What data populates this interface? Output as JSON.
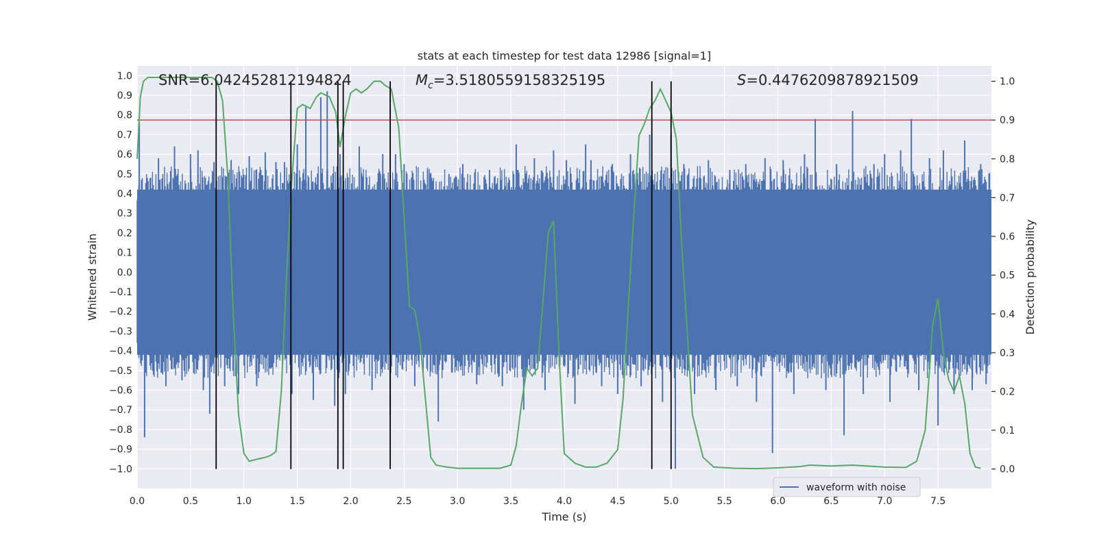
{
  "chart_data": {
    "type": "line",
    "title": "stats at each timestep for test data 12986 [signal=1]",
    "xlabel": "Time (s)",
    "ylabel": "Whitened strain",
    "ylabel_right": "Detection probability",
    "xlim": [
      0,
      8
    ],
    "ylim": [
      -1.1,
      1.05
    ],
    "ylim_right": [
      -0.05,
      1.04
    ],
    "x_ticks": [
      0,
      0.5,
      1,
      1.5,
      2,
      2.5,
      3,
      3.5,
      4,
      4.5,
      5,
      5.5,
      6,
      6.5,
      7,
      7.5
    ],
    "x_tick_labels": [
      "0.0",
      "0.5",
      "1.0",
      "1.5",
      "2.0",
      "2.5",
      "3.0",
      "3.5",
      "4.0",
      "4.5",
      "5.0",
      "5.5",
      "6.0",
      "6.5",
      "7.0",
      "7.5"
    ],
    "y_ticks": [
      -1.0,
      -0.9,
      -0.8,
      -0.7,
      -0.6,
      -0.5,
      -0.4,
      -0.3,
      -0.2,
      -0.1,
      0.0,
      0.1,
      0.2,
      0.3,
      0.4,
      0.5,
      0.6,
      0.7,
      0.8,
      0.9,
      1.0
    ],
    "y_tick_labels": [
      "−1.0",
      "−0.9",
      "−0.8",
      "−0.7",
      "−0.6",
      "−0.5",
      "−0.4",
      "−0.3",
      "−0.2",
      "−0.1",
      "0.0",
      "0.1",
      "0.2",
      "0.3",
      "0.4",
      "0.5",
      "0.6",
      "0.7",
      "0.8",
      "0.9",
      "1.0"
    ],
    "y_right_ticks": [
      0.0,
      0.1,
      0.2,
      0.3,
      0.4,
      0.5,
      0.6,
      0.7,
      0.8,
      0.9,
      1.0
    ],
    "y_right_tick_labels": [
      "0.0",
      "0.1",
      "0.2",
      "0.3",
      "0.4",
      "0.5",
      "0.6",
      "0.7",
      "0.8",
      "0.9",
      "1.0"
    ],
    "grid": true,
    "legend_placement": "lower-right",
    "annotations": {
      "snr": "SNR=6.042452812194824",
      "mc_symbol": "M",
      "mc_subscript": "c",
      "mc_value": "=3.5180559158325195",
      "s_symbol": "S",
      "s_value": "=0.4476209878921509"
    },
    "series": [
      {
        "name": "waveform with noise",
        "axis": "left",
        "color": "#4c72b0",
        "kind": "noise-band",
        "band_low": -0.42,
        "band_high": 0.42,
        "peaks": [
          [
            0.02,
            0.76
          ],
          [
            0.07,
            -0.84
          ],
          [
            0.2,
            0.58
          ],
          [
            0.27,
            -0.58
          ],
          [
            0.35,
            0.64
          ],
          [
            0.42,
            -0.55
          ],
          [
            0.5,
            0.6
          ],
          [
            0.57,
            0.62
          ],
          [
            0.62,
            -0.6
          ],
          [
            0.68,
            -0.72
          ],
          [
            0.72,
            0.56
          ],
          [
            0.82,
            -0.58
          ],
          [
            0.88,
            0.57
          ],
          [
            0.95,
            -0.62
          ],
          [
            1.05,
            0.59
          ],
          [
            1.12,
            -0.58
          ],
          [
            1.2,
            0.61
          ],
          [
            1.3,
            0.56
          ],
          [
            1.38,
            0.56
          ],
          [
            1.45,
            -0.62
          ],
          [
            1.5,
            0.65
          ],
          [
            1.58,
            0.84
          ],
          [
            1.65,
            -0.65
          ],
          [
            1.72,
            0.89
          ],
          [
            1.78,
            0.92
          ],
          [
            1.85,
            -0.68
          ],
          [
            1.9,
            0.6
          ],
          [
            1.95,
            -0.62
          ],
          [
            2.08,
            0.64
          ],
          [
            2.2,
            -0.6
          ],
          [
            2.3,
            0.6
          ],
          [
            2.37,
            -0.73
          ],
          [
            2.42,
            0.6
          ],
          [
            2.5,
            0.55
          ],
          [
            2.6,
            -0.58
          ],
          [
            2.72,
            0.52
          ],
          [
            2.82,
            -0.76
          ],
          [
            2.92,
            0.5
          ],
          [
            3.05,
            0.55
          ],
          [
            3.18,
            -0.57
          ],
          [
            3.3,
            0.52
          ],
          [
            3.42,
            -0.58
          ],
          [
            3.55,
            0.65
          ],
          [
            3.62,
            -0.7
          ],
          [
            3.72,
            0.58
          ],
          [
            3.82,
            -0.6
          ],
          [
            3.9,
            0.62
          ],
          [
            4.02,
            0.57
          ],
          [
            4.1,
            -0.67
          ],
          [
            4.2,
            0.65
          ],
          [
            4.25,
            0.57
          ],
          [
            4.35,
            -0.58
          ],
          [
            4.45,
            0.55
          ],
          [
            4.5,
            -0.62
          ],
          [
            4.62,
            0.6
          ],
          [
            4.72,
            -0.58
          ],
          [
            4.8,
            0.7
          ],
          [
            4.92,
            -0.66
          ],
          [
            5.0,
            0.7
          ],
          [
            5.04,
            -1.0
          ],
          [
            5.12,
            0.55
          ],
          [
            5.22,
            -0.62
          ],
          [
            5.35,
            0.57
          ],
          [
            5.42,
            -0.6
          ],
          [
            5.55,
            0.52
          ],
          [
            5.62,
            -0.58
          ],
          [
            5.7,
            0.55
          ],
          [
            5.8,
            -0.66
          ],
          [
            5.88,
            0.58
          ],
          [
            5.95,
            -0.92
          ],
          [
            6.05,
            0.57
          ],
          [
            6.15,
            -0.62
          ],
          [
            6.25,
            0.6
          ],
          [
            6.35,
            0.78
          ],
          [
            6.45,
            -0.6
          ],
          [
            6.55,
            0.55
          ],
          [
            6.62,
            -0.83
          ],
          [
            6.7,
            0.82
          ],
          [
            6.8,
            -0.62
          ],
          [
            6.9,
            0.55
          ],
          [
            7.0,
            0.6
          ],
          [
            7.05,
            -0.66
          ],
          [
            7.15,
            0.62
          ],
          [
            7.25,
            0.78
          ],
          [
            7.32,
            -0.6
          ],
          [
            7.42,
            0.58
          ],
          [
            7.5,
            -0.78
          ],
          [
            7.55,
            0.62
          ],
          [
            7.65,
            -0.62
          ],
          [
            7.75,
            0.67
          ],
          [
            7.82,
            -0.6
          ],
          [
            7.9,
            0.55
          ],
          [
            7.95,
            -0.57
          ]
        ]
      },
      {
        "name": "",
        "axis": "right",
        "color": "#55a868",
        "kind": "line",
        "points": [
          [
            0.0,
            0.8
          ],
          [
            0.03,
            0.96
          ],
          [
            0.06,
            1.0
          ],
          [
            0.1,
            1.01
          ],
          [
            0.2,
            1.01
          ],
          [
            0.4,
            1.01
          ],
          [
            0.6,
            1.01
          ],
          [
            0.7,
            1.01
          ],
          [
            0.75,
            1.0
          ],
          [
            0.8,
            0.95
          ],
          [
            0.85,
            0.75
          ],
          [
            0.9,
            0.4
          ],
          [
            0.95,
            0.14
          ],
          [
            1.0,
            0.04
          ],
          [
            1.05,
            0.02
          ],
          [
            1.12,
            0.025
          ],
          [
            1.2,
            0.03
          ],
          [
            1.25,
            0.035
          ],
          [
            1.3,
            0.045
          ],
          [
            1.35,
            0.2
          ],
          [
            1.4,
            0.5
          ],
          [
            1.45,
            0.75
          ],
          [
            1.5,
            0.93
          ],
          [
            1.55,
            0.94
          ],
          [
            1.62,
            0.93
          ],
          [
            1.68,
            0.96
          ],
          [
            1.72,
            0.97
          ],
          [
            1.8,
            0.96
          ],
          [
            1.86,
            0.92
          ],
          [
            1.9,
            0.83
          ],
          [
            1.95,
            0.91
          ],
          [
            2.0,
            0.97
          ],
          [
            2.05,
            0.98
          ],
          [
            2.1,
            0.97
          ],
          [
            2.15,
            0.98
          ],
          [
            2.22,
            1.0
          ],
          [
            2.28,
            1.0
          ],
          [
            2.32,
            0.99
          ],
          [
            2.38,
            0.98
          ],
          [
            2.45,
            0.88
          ],
          [
            2.5,
            0.65
          ],
          [
            2.55,
            0.42
          ],
          [
            2.6,
            0.41
          ],
          [
            2.65,
            0.33
          ],
          [
            2.7,
            0.18
          ],
          [
            2.75,
            0.03
          ],
          [
            2.8,
            0.01
          ],
          [
            2.9,
            0.005
          ],
          [
            3.0,
            0.002
          ],
          [
            3.2,
            0.002
          ],
          [
            3.4,
            0.002
          ],
          [
            3.5,
            0.01
          ],
          [
            3.55,
            0.06
          ],
          [
            3.6,
            0.17
          ],
          [
            3.65,
            0.26
          ],
          [
            3.7,
            0.24
          ],
          [
            3.75,
            0.26
          ],
          [
            3.8,
            0.43
          ],
          [
            3.85,
            0.61
          ],
          [
            3.9,
            0.64
          ],
          [
            3.95,
            0.3
          ],
          [
            4.0,
            0.04
          ],
          [
            4.1,
            0.015
          ],
          [
            4.2,
            0.005
          ],
          [
            4.3,
            0.005
          ],
          [
            4.4,
            0.015
          ],
          [
            4.5,
            0.05
          ],
          [
            4.55,
            0.18
          ],
          [
            4.6,
            0.42
          ],
          [
            4.65,
            0.65
          ],
          [
            4.7,
            0.86
          ],
          [
            4.75,
            0.89
          ],
          [
            4.8,
            0.93
          ],
          [
            4.85,
            0.95
          ],
          [
            4.9,
            0.98
          ],
          [
            4.95,
            0.95
          ],
          [
            5.0,
            0.92
          ],
          [
            5.05,
            0.85
          ],
          [
            5.1,
            0.58
          ],
          [
            5.2,
            0.14
          ],
          [
            5.3,
            0.03
          ],
          [
            5.4,
            0.005
          ],
          [
            5.6,
            0.002
          ],
          [
            5.8,
            0.001
          ],
          [
            6.0,
            0.003
          ],
          [
            6.2,
            0.006
          ],
          [
            6.3,
            0.01
          ],
          [
            6.5,
            0.008
          ],
          [
            6.7,
            0.01
          ],
          [
            7.0,
            0.005
          ],
          [
            7.2,
            0.004
          ],
          [
            7.3,
            0.02
          ],
          [
            7.38,
            0.1
          ],
          [
            7.45,
            0.37
          ],
          [
            7.5,
            0.44
          ],
          [
            7.55,
            0.3
          ],
          [
            7.6,
            0.23
          ],
          [
            7.65,
            0.2
          ],
          [
            7.7,
            0.24
          ],
          [
            7.75,
            0.17
          ],
          [
            7.8,
            0.04
          ],
          [
            7.85,
            0.005
          ],
          [
            7.9,
            0.002
          ]
        ]
      },
      {
        "name": "",
        "axis": "right",
        "color": "#c44e52",
        "kind": "hline",
        "value": 0.9
      }
    ],
    "vlines": [
      0.74,
      1.44,
      1.88,
      1.93,
      2.37,
      4.82,
      5.0
    ]
  }
}
